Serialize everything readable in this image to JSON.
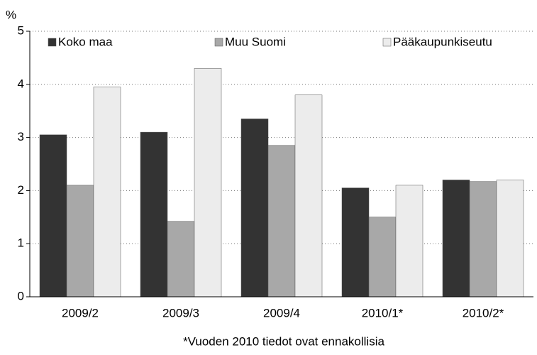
{
  "chart_data": {
    "type": "bar",
    "y_label": "%",
    "categories": [
      "2009/2",
      "2009/3",
      "2009/4",
      "2010/1*",
      "2010/2*"
    ],
    "series": [
      {
        "name": "Koko maa",
        "color": "#333333",
        "values": [
          3.05,
          3.1,
          3.35,
          2.05,
          2.2
        ]
      },
      {
        "name": "Muu Suomi",
        "color": "#a8a8a8",
        "values": [
          2.1,
          1.42,
          2.85,
          1.5,
          2.17
        ]
      },
      {
        "name": "Pääkaupunkiseutu",
        "color": "#ececec",
        "values": [
          3.95,
          4.3,
          3.8,
          2.1,
          2.2
        ]
      }
    ],
    "ylim": [
      0,
      5
    ],
    "yticks": [
      0,
      1,
      2,
      3,
      4,
      5
    ],
    "grid": true,
    "legend": "top",
    "note": "*Vuoden 2010 tiedot ovat ennakollisia"
  }
}
